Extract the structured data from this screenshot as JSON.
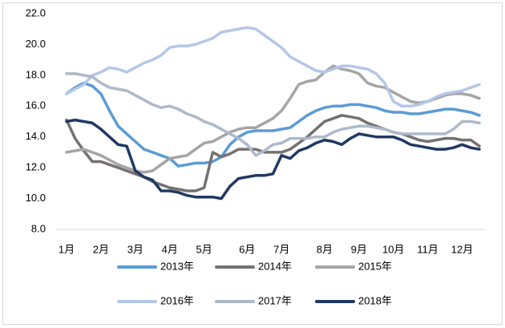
{
  "chart_data": {
    "type": "line",
    "categories": [
      "1月",
      null,
      null,
      null,
      "2月",
      null,
      null,
      null,
      "3月",
      null,
      null,
      null,
      "4月",
      null,
      null,
      null,
      "5月",
      null,
      null,
      null,
      null,
      "6月",
      null,
      null,
      null,
      "7月",
      null,
      null,
      null,
      null,
      "8月",
      null,
      null,
      null,
      "9月",
      null,
      null,
      null,
      "10月",
      null,
      null,
      null,
      "11月",
      null,
      null,
      null,
      "12月",
      null,
      null
    ],
    "ylim": [
      8,
      22
    ],
    "yticks": [
      {
        "value": 8,
        "label": "8.0"
      },
      {
        "value": 10,
        "label": "10.0"
      },
      {
        "value": 12,
        "label": "12.0"
      },
      {
        "value": 14,
        "label": "14.0"
      },
      {
        "value": 16,
        "label": "16.0"
      },
      {
        "value": 18,
        "label": "18.0"
      },
      {
        "value": 20,
        "label": "20.0"
      },
      {
        "value": 22,
        "label": "22.0"
      }
    ],
    "grid": false,
    "legend": "bottom",
    "series": [
      {
        "name": "2013年",
        "color": "#5b9bd5",
        "values": [
          16.8,
          17.2,
          17.5,
          17.3,
          16.8,
          15.7,
          14.7,
          14.2,
          13.7,
          13.2,
          13.0,
          12.8,
          12.6,
          12.1,
          12.2,
          12.3,
          12.3,
          12.4,
          12.7,
          13.5,
          14.0,
          14.3,
          14.4,
          14.4,
          14.4,
          14.5,
          14.6,
          15.0,
          15.4,
          15.7,
          15.9,
          16.0,
          16.0,
          16.1,
          16.1,
          16.0,
          15.9,
          15.7,
          15.6,
          15.6,
          15.5,
          15.5,
          15.6,
          15.7,
          15.8,
          15.8,
          15.7,
          15.6,
          15.4
        ]
      },
      {
        "name": "2014年",
        "color": "#767171",
        "values": [
          15.1,
          13.9,
          13.1,
          12.4,
          12.4,
          12.2,
          12.0,
          11.8,
          11.6,
          11.4,
          11.1,
          10.9,
          10.7,
          10.6,
          10.5,
          10.5,
          10.7,
          13.0,
          12.7,
          12.9,
          13.2,
          13.2,
          13.2,
          13.0,
          13.0,
          13.0,
          13.2,
          13.6,
          14.0,
          14.5,
          15.0,
          15.2,
          15.4,
          15.3,
          15.2,
          14.9,
          14.7,
          14.5,
          14.3,
          14.2,
          14.0,
          13.8,
          13.7,
          13.8,
          13.9,
          13.9,
          13.8,
          13.8,
          13.4
        ]
      },
      {
        "name": "2015年",
        "color": "#a5a5a5",
        "values": [
          13.0,
          13.1,
          13.2,
          13.0,
          12.8,
          12.5,
          12.2,
          12.0,
          11.8,
          11.7,
          11.8,
          12.2,
          12.6,
          12.7,
          12.8,
          13.2,
          13.6,
          13.7,
          14.0,
          14.3,
          14.5,
          14.6,
          14.6,
          14.9,
          15.2,
          15.7,
          16.5,
          17.4,
          17.6,
          17.7,
          18.2,
          18.6,
          18.4,
          18.3,
          18.1,
          17.5,
          17.3,
          17.2,
          16.9,
          16.6,
          16.3,
          16.2,
          16.3,
          16.5,
          16.7,
          16.8,
          16.8,
          16.7,
          16.5
        ]
      },
      {
        "name": "2016年",
        "color": "#b4c7e7",
        "values": [
          16.8,
          17.1,
          17.4,
          18.0,
          18.2,
          18.5,
          18.4,
          18.2,
          18.5,
          18.8,
          19.0,
          19.3,
          19.8,
          19.9,
          19.9,
          20.0,
          20.2,
          20.4,
          20.8,
          20.9,
          21.0,
          21.1,
          21.0,
          20.6,
          20.2,
          19.8,
          19.2,
          18.9,
          18.6,
          18.3,
          18.2,
          18.4,
          18.6,
          18.6,
          18.5,
          18.4,
          18.1,
          17.5,
          16.3,
          16.0,
          16.0,
          16.1,
          16.3,
          16.6,
          16.8,
          16.9,
          17.0,
          17.2,
          17.4
        ]
      },
      {
        "name": "2017年",
        "color": "#adb9ca",
        "values": [
          18.1,
          18.1,
          18.0,
          17.9,
          17.5,
          17.2,
          17.1,
          17.0,
          16.7,
          16.4,
          16.1,
          15.9,
          16.0,
          15.8,
          15.5,
          15.3,
          15.0,
          14.8,
          14.5,
          14.2,
          13.9,
          13.5,
          12.8,
          13.1,
          13.5,
          13.6,
          13.9,
          13.9,
          13.9,
          14.0,
          14.0,
          14.3,
          14.5,
          14.6,
          14.7,
          14.7,
          14.6,
          14.5,
          14.3,
          14.2,
          14.2,
          14.2,
          14.2,
          14.2,
          14.2,
          14.5,
          15.0,
          15.0,
          14.9
        ]
      },
      {
        "name": "2018年",
        "color": "#203864",
        "values": [
          15.0,
          15.1,
          15.0,
          14.9,
          14.5,
          14.0,
          13.5,
          13.4,
          11.8,
          11.4,
          11.2,
          10.5,
          10.5,
          10.4,
          10.2,
          10.1,
          10.1,
          10.1,
          10.0,
          10.8,
          11.3,
          11.4,
          11.5,
          11.5,
          11.6,
          12.8,
          12.6,
          13.1,
          13.3,
          13.6,
          13.8,
          13.7,
          13.5,
          13.9,
          14.2,
          14.1,
          14.0,
          14.0,
          14.0,
          13.8,
          13.5,
          13.4,
          13.3,
          13.2,
          13.2,
          13.3,
          13.5,
          13.3,
          13.2
        ]
      }
    ]
  }
}
